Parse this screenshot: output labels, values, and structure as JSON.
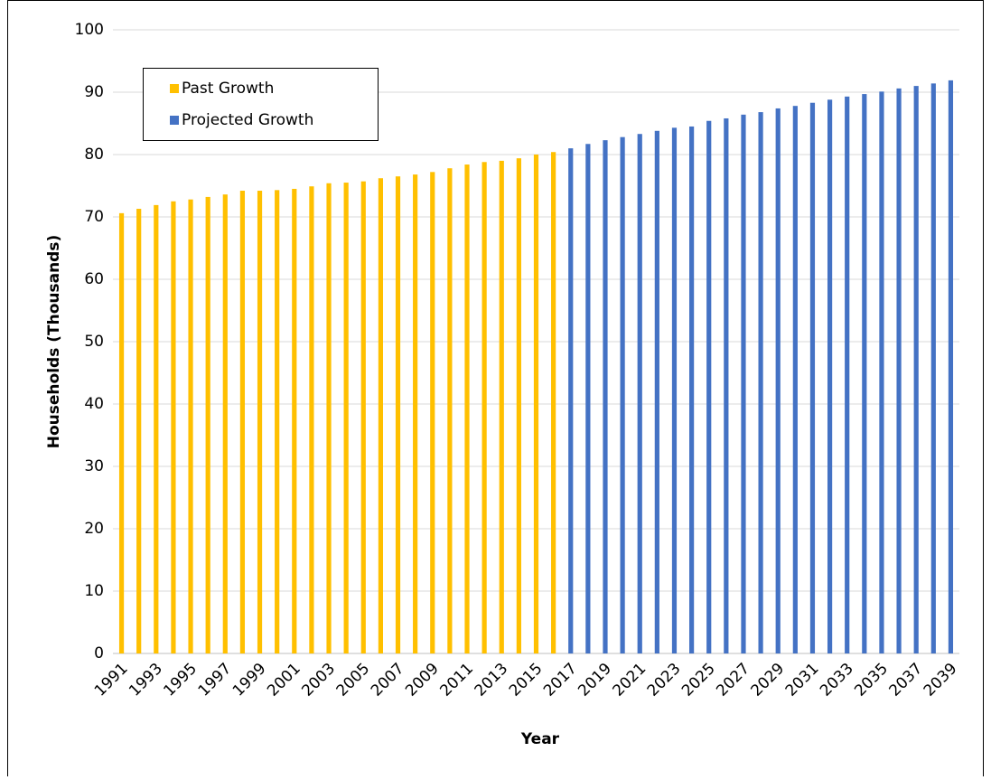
{
  "chart_data": {
    "type": "bar",
    "x_label": "Year",
    "y_label": "Households (Thousands)",
    "categories": [
      "1991",
      null,
      "1993",
      null,
      "1995",
      null,
      "1997",
      null,
      "1999",
      null,
      "2001",
      null,
      "2003",
      null,
      "2005",
      null,
      "2007",
      null,
      "2009",
      null,
      "2011",
      null,
      "2013",
      null,
      "2015",
      null,
      "2017",
      null,
      "2019",
      null,
      "2021",
      null,
      "2023",
      null,
      "2025",
      null,
      "2027",
      null,
      "2029",
      null,
      "2031",
      null,
      "2033",
      null,
      "2035",
      null,
      "2037",
      null,
      "2039"
    ],
    "series": [
      {
        "name": "Past Growth",
        "color": "#ffc000",
        "values": [
          70.6,
          71.3,
          71.9,
          72.5,
          72.8,
          73.2,
          73.6,
          74.2,
          74.2,
          74.3,
          74.5,
          74.9,
          75.4,
          75.5,
          75.7,
          76.2,
          76.5,
          76.8,
          77.2,
          77.8,
          78.4,
          78.8,
          79.0,
          79.4,
          80.0,
          80.4,
          null,
          null,
          null,
          null,
          null,
          null,
          null,
          null,
          null,
          null,
          null,
          null,
          null,
          null,
          null,
          null,
          null,
          null,
          null,
          null,
          null,
          null,
          null
        ]
      },
      {
        "name": "Projected Growth",
        "color": "#4472c4",
        "values": [
          null,
          null,
          null,
          null,
          null,
          null,
          null,
          null,
          null,
          null,
          null,
          null,
          null,
          null,
          null,
          null,
          null,
          null,
          null,
          null,
          null,
          null,
          null,
          null,
          null,
          null,
          81.0,
          81.7,
          82.3,
          82.8,
          83.3,
          83.8,
          84.3,
          84.5,
          85.4,
          85.8,
          86.4,
          86.8,
          87.4,
          87.8,
          88.3,
          88.8,
          89.3,
          89.7,
          90.1,
          90.6,
          91.0,
          91.4,
          91.9
        ]
      }
    ],
    "ylim": [
      0,
      100
    ],
    "yticks": [
      0,
      10,
      20,
      30,
      40,
      50,
      60,
      70,
      80,
      90,
      100
    ],
    "grid": true,
    "legend": "upper left"
  }
}
